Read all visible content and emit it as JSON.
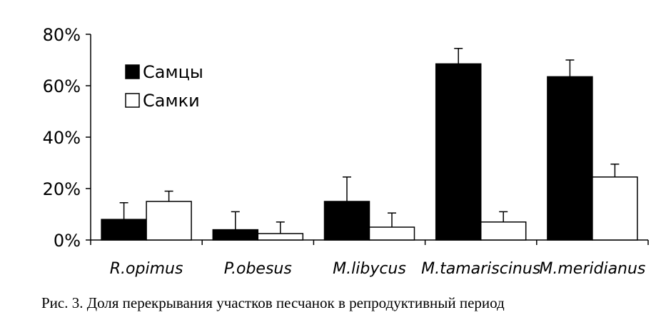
{
  "chart_data": {
    "type": "bar",
    "categories": [
      "R.opimus",
      "P.obesus",
      "M.libycus",
      "M.tamariscinus",
      "M.meridianus"
    ],
    "series": [
      {
        "name": "Самцы",
        "color": "#000000",
        "values": [
          8,
          4,
          15,
          68.5,
          63.5
        ],
        "errors": [
          6.5,
          7,
          9.5,
          6,
          6.5
        ]
      },
      {
        "name": "Самки",
        "color": "#ffffff",
        "values": [
          15,
          2.5,
          5,
          7,
          24.5
        ],
        "errors": [
          4,
          4.5,
          5.5,
          4,
          5
        ]
      }
    ],
    "y_ticks": [
      "0%",
      "20%",
      "40%",
      "60%",
      "80%"
    ],
    "ylim": [
      0,
      80
    ],
    "legend_position": "top-left",
    "grid": false
  },
  "caption": "Рис. 3. Доля перекрывания участков песчанок в репродуктивный период"
}
